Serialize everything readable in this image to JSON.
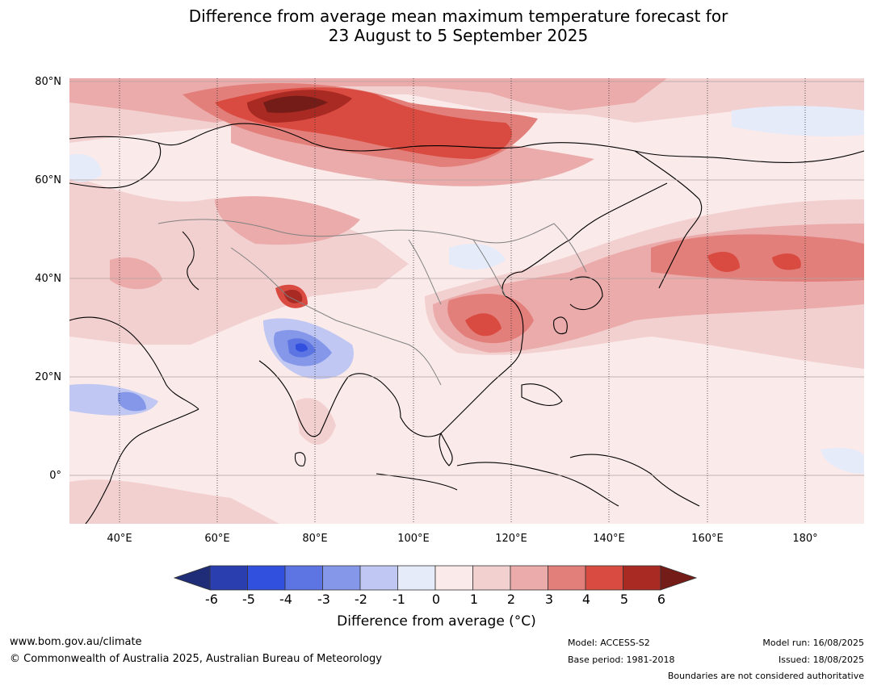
{
  "title_line1": "Difference from average mean maximum temperature forecast for",
  "title_line2": "23 August to 5 September 2025",
  "lat_labels": [
    "80°N",
    "60°N",
    "40°N",
    "20°N",
    "0°"
  ],
  "lon_labels": [
    "40°E",
    "60°E",
    "80°E",
    "100°E",
    "120°E",
    "140°E",
    "160°E",
    "180°"
  ],
  "colorbar": {
    "ticks": [
      "-6",
      "-5",
      "-4",
      "-3",
      "-2",
      "-1",
      "0",
      "1",
      "2",
      "3",
      "4",
      "5",
      "6"
    ],
    "label": "Difference from average (°C)",
    "colors": [
      "#1f2d78",
      "#2a3eb0",
      "#3250de",
      "#5c75e2",
      "#8597e9",
      "#bfc7f2",
      "#e6ebfa",
      "#fbeaea",
      "#f3d0d0",
      "#ebabab",
      "#e37f7a",
      "#d94a40",
      "#a82a23",
      "#741c17"
    ]
  },
  "footer": {
    "url": "www.bom.gov.au/climate",
    "copyright": "© Commonwealth of Australia 2025, Australian Bureau of Meteorology",
    "model": "Model: ACCESS-S2",
    "base_period": "Base period: 1981-2018",
    "model_run": "Model run: 16/08/2025",
    "issued": "Issued: 18/08/2025",
    "disclaimer": "Boundaries are not considered authoritative"
  }
}
